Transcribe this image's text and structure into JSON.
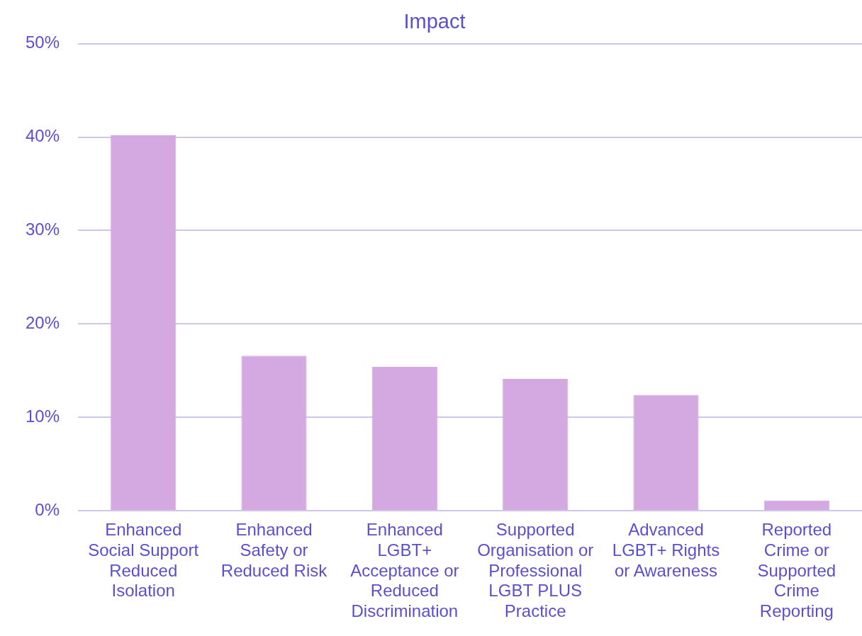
{
  "chart_data": {
    "type": "bar",
    "title": "Impact",
    "categories": [
      "Enhanced\nSocial Support\nReduced\nIsolation",
      "Enhanced\nSafety or\nReduced Risk",
      "Enhanced\nLGBT+\nAcceptance or\nReduced\nDiscrimination",
      "Supported\nOrganisation or\nProfessional\nLGBT PLUS\nPractice",
      "Advanced\nLGBT+ Rights\nor Awareness",
      "Reported\nCrime or\nSupported\nCrime\nReporting"
    ],
    "values": [
      40.2,
      16.6,
      15.4,
      14.1,
      12.4,
      1.1
    ],
    "color": "#d4a8e0",
    "ylim": [
      0,
      50
    ],
    "yticks": [
      {
        "value": 0,
        "label": "0%"
      },
      {
        "value": 10,
        "label": "10%"
      },
      {
        "value": 20,
        "label": "20%"
      },
      {
        "value": 30,
        "label": "30%"
      },
      {
        "value": 40,
        "label": "40%"
      },
      {
        "value": 50,
        "label": "50%"
      }
    ],
    "grid": "y",
    "legend": false
  }
}
